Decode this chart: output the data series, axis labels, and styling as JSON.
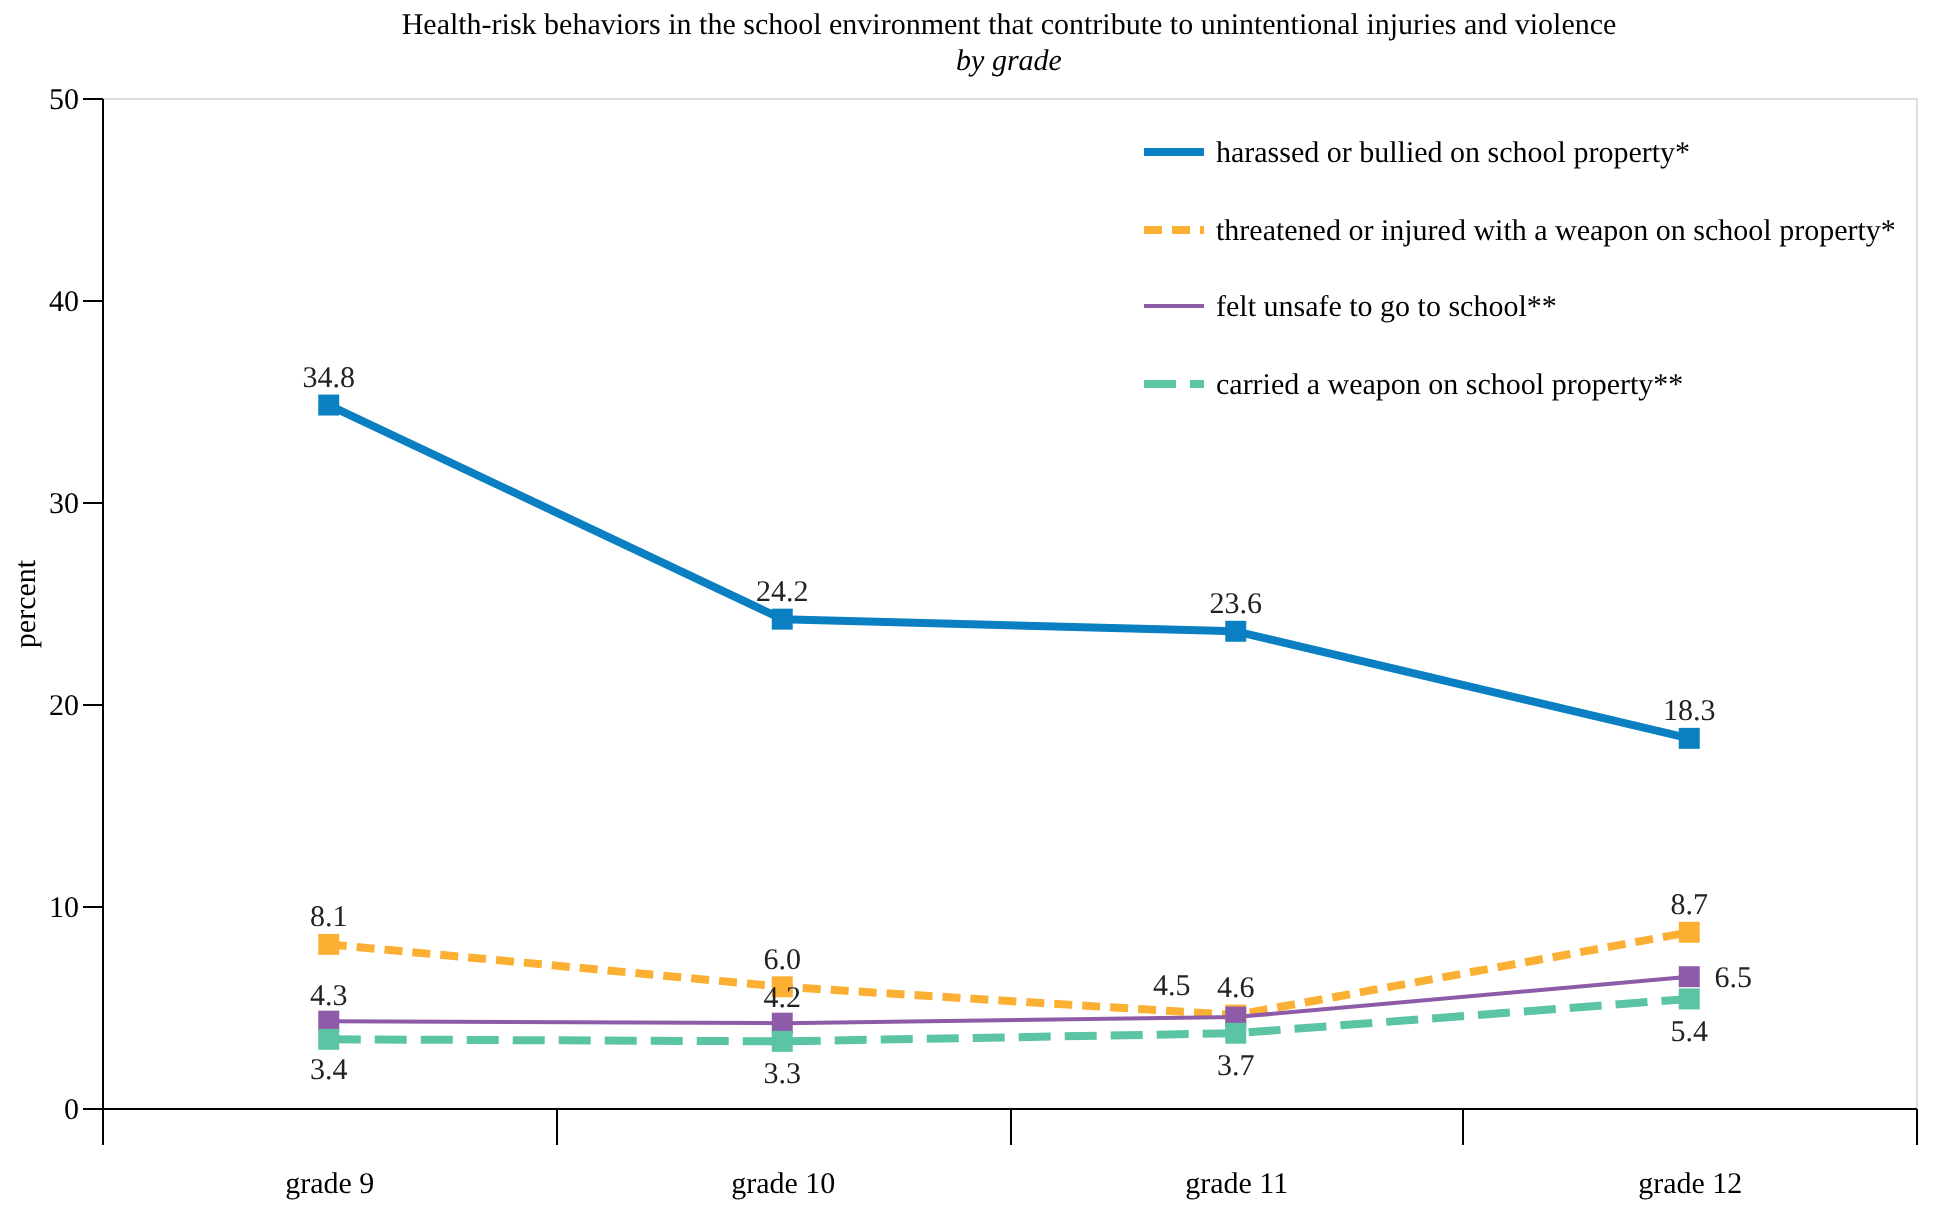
{
  "chart_data": {
    "type": "line",
    "title": "Health-risk behaviors in the school environment that contribute to unintentional injuries and violence",
    "subtitle": "by grade",
    "ylabel": "percent",
    "categories": [
      "grade 9",
      "grade 10",
      "grade 11",
      "grade 12"
    ],
    "ylim": [
      0,
      50
    ],
    "yticks": [
      0,
      10,
      20,
      30,
      40,
      50
    ],
    "grid": false,
    "legend": "top right",
    "marker": "square",
    "data_labels": true,
    "series": [
      {
        "name": "harassed or bullied on school property*",
        "color": "#0a7fc1",
        "line_style": "solid",
        "values": [
          34.8,
          24.2,
          23.6,
          18.3
        ],
        "value_labels": [
          "34.8",
          "24.2",
          "23.6",
          "18.3"
        ]
      },
      {
        "name": "threatened or injured with a weapon on school property*",
        "color": "#fbb034",
        "line_style": "dashed",
        "values": [
          8.1,
          6.0,
          4.6,
          8.7
        ],
        "value_labels": [
          "8.1",
          "6.0",
          "4.6",
          "8.7"
        ]
      },
      {
        "name": "felt unsafe to go to school**",
        "color": "#8e5ba8",
        "line_style": "solid",
        "values": [
          4.3,
          4.2,
          4.5,
          6.5
        ],
        "value_labels": [
          "4.3",
          "4.2",
          "4.5",
          "6.5"
        ]
      },
      {
        "name": "carried a weapon on school property**",
        "color": "#5ac4a4",
        "line_style": "dashed",
        "values": [
          3.4,
          3.3,
          3.7,
          5.4
        ],
        "value_labels": [
          "3.4",
          "3.3",
          "3.7",
          "5.4"
        ]
      }
    ]
  }
}
